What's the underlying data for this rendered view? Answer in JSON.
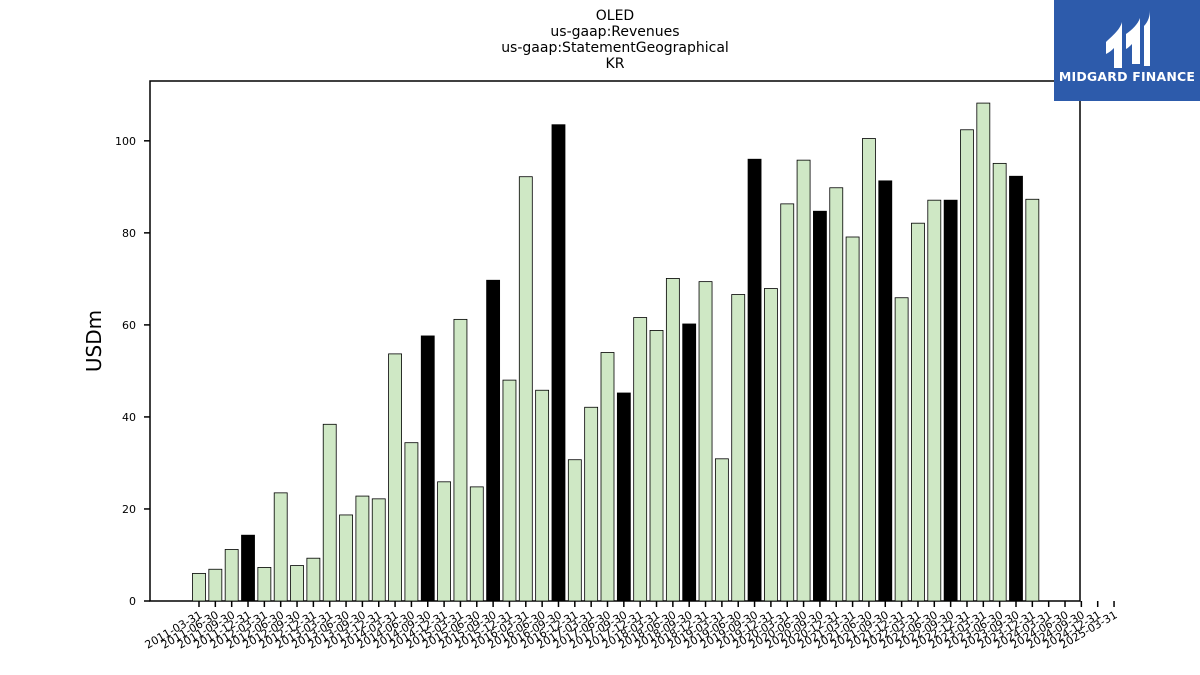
{
  "chart_data": {
    "type": "bar",
    "title_lines": [
      "OLED",
      "us-gaap:Revenues",
      "us-gaap:StatementGeographical",
      "KR"
    ],
    "xlabel": "",
    "ylabel": "USDm",
    "ylim": [
      0,
      113
    ],
    "yticks": [
      0,
      20,
      40,
      60,
      80,
      100
    ],
    "grid": false,
    "colors": {
      "quarter": "#cfe8c5",
      "fiscal_year_end": "#000000",
      "edge": "#000000"
    },
    "categories": [
      "2011-03-31",
      "2011-06-30",
      "2011-09-30",
      "2011-12-31",
      "2012-03-31",
      "2012-06-30",
      "2012-09-30",
      "2012-12-31",
      "2013-03-31",
      "2013-06-30",
      "2013-09-30",
      "2013-12-31",
      "2014-03-31",
      "2014-06-30",
      "2014-09-30",
      "2014-12-31",
      "2015-03-31",
      "2015-06-30",
      "2015-09-30",
      "2015-12-31",
      "2016-03-31",
      "2016-06-30",
      "2016-09-30",
      "2016-12-31",
      "2017-03-31",
      "2017-06-30",
      "2017-09-30",
      "2017-12-31",
      "2018-03-31",
      "2018-06-30",
      "2018-09-30",
      "2018-12-31",
      "2019-03-31",
      "2019-06-30",
      "2019-09-30",
      "2019-12-31",
      "2020-03-31",
      "2020-06-30",
      "2020-09-30",
      "2020-12-31",
      "2021-03-31",
      "2021-06-30",
      "2021-09-30",
      "2021-12-31",
      "2022-03-31",
      "2022-06-30",
      "2022-09-30",
      "2022-12-31",
      "2023-03-31",
      "2023-06-30",
      "2023-09-30",
      "2023-12-31",
      "2024-03-31",
      "2024-06-30",
      "2024-09-30",
      "2024-12-31",
      "2025-03-31"
    ],
    "values": [
      6.0,
      6.9,
      11.2,
      14.3,
      7.3,
      23.5,
      7.7,
      9.3,
      38.4,
      18.7,
      22.8,
      22.2,
      53.7,
      34.4,
      57.6,
      25.9,
      61.2,
      24.8,
      69.7,
      48.0,
      92.2,
      45.8,
      103.5,
      30.7,
      42.1,
      54.0,
      45.2,
      61.6,
      58.8,
      70.1,
      60.2,
      69.4,
      30.9,
      66.6,
      96.0,
      67.9,
      86.3,
      95.8,
      84.7,
      89.8,
      79.1,
      100.5,
      91.3,
      65.9,
      82.1,
      87.1,
      87.1,
      102.4,
      108.2,
      95.1,
      92.3,
      87.3,
      0,
      0,
      0,
      0,
      0
    ],
    "highlight": [
      false,
      false,
      false,
      true,
      false,
      false,
      false,
      false,
      false,
      false,
      false,
      false,
      false,
      false,
      true,
      false,
      false,
      false,
      true,
      false,
      false,
      false,
      true,
      false,
      false,
      false,
      true,
      false,
      false,
      false,
      true,
      false,
      false,
      false,
      true,
      false,
      false,
      false,
      true,
      false,
      false,
      false,
      true,
      false,
      false,
      false,
      true,
      false,
      false,
      false,
      true,
      false,
      false,
      false,
      false,
      false,
      false
    ]
  },
  "logo": {
    "text": "MIDGARD FINANCE"
  }
}
